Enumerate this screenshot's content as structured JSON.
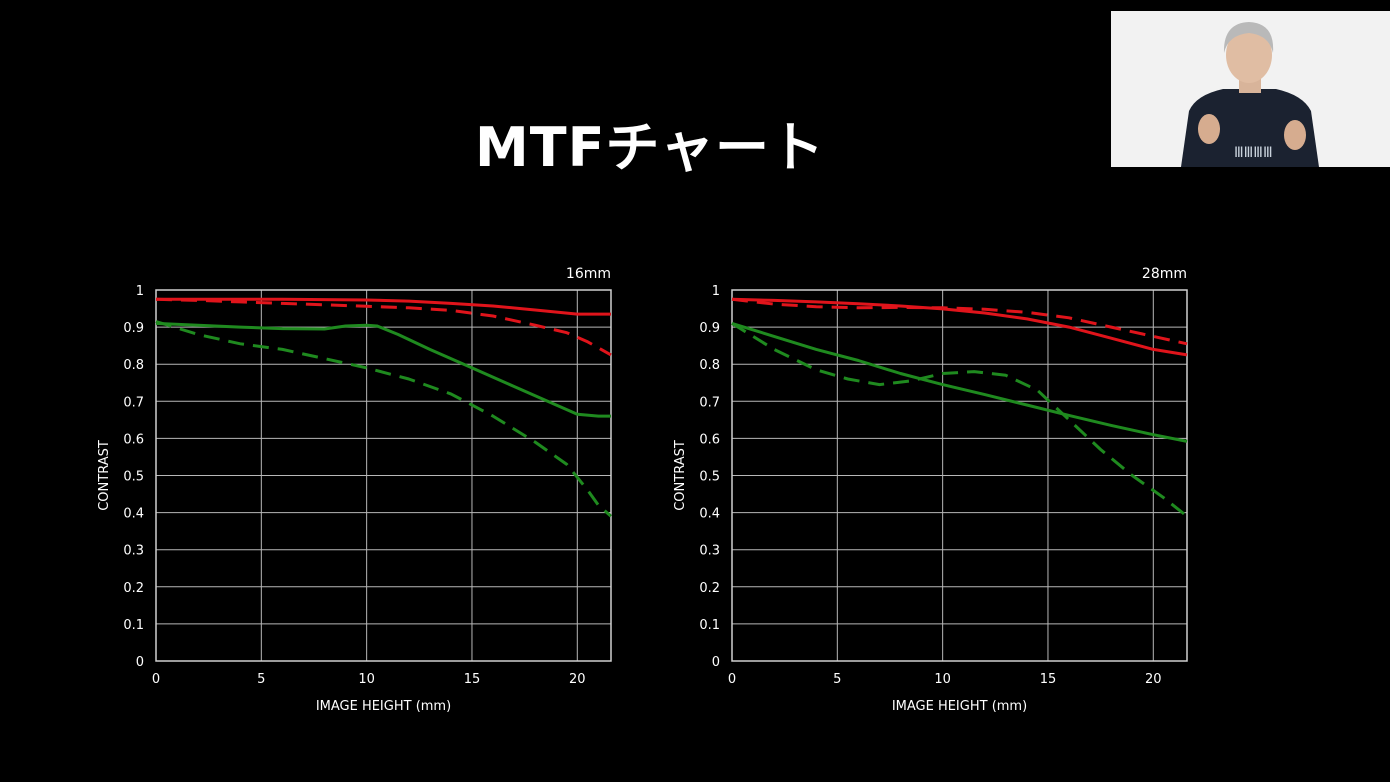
{
  "slide": {
    "title": "MTFチャート"
  },
  "colors": {
    "background": "#000000",
    "sagittal_red": "#e0141b",
    "green": "#1f8a1f",
    "grid": "#b8b8b8"
  },
  "presenter": {
    "icon": "presenter-video-thumbnail",
    "shirt_text": "ⅢⅢⅢⅢ"
  },
  "chart_data": [
    {
      "type": "line",
      "title": "16mm",
      "xlabel": "IMAGE HEIGHT (mm)",
      "ylabel": "CONTRAST",
      "xlim": [
        0,
        21.6
      ],
      "ylim": [
        0,
        1
      ],
      "xticks": [
        0,
        5,
        10,
        15,
        20
      ],
      "yticks": [
        0,
        0.1,
        0.2,
        0.3,
        0.4,
        0.5,
        0.6,
        0.7,
        0.8,
        0.9,
        1
      ],
      "ytick_labels": [
        "0",
        "0.1",
        "0.2",
        "0.3",
        "0.4",
        "0.5",
        "0.6",
        "0.7",
        "0.8",
        "0.9",
        "1"
      ],
      "grid": true,
      "series": [
        {
          "color": "red",
          "style": "solid",
          "x": [
            0,
            2,
            4,
            6,
            8,
            10,
            12,
            14,
            16,
            18,
            20,
            21,
            21.6
          ],
          "y": [
            0.975,
            0.975,
            0.975,
            0.975,
            0.974,
            0.973,
            0.97,
            0.964,
            0.957,
            0.946,
            0.935,
            0.935,
            0.935
          ]
        },
        {
          "color": "red",
          "style": "dashed",
          "x": [
            0,
            2,
            4,
            6,
            8,
            10,
            12,
            14,
            16,
            18,
            19.5,
            20.5,
            21.6
          ],
          "y": [
            0.975,
            0.972,
            0.968,
            0.964,
            0.96,
            0.956,
            0.952,
            0.945,
            0.93,
            0.905,
            0.885,
            0.86,
            0.825
          ]
        },
        {
          "color": "green",
          "style": "solid",
          "x": [
            0,
            2,
            4,
            6,
            8,
            9,
            10,
            10.5,
            11.5,
            13,
            15,
            17,
            19,
            20,
            21,
            21.6
          ],
          "y": [
            0.91,
            0.905,
            0.9,
            0.896,
            0.895,
            0.903,
            0.905,
            0.903,
            0.88,
            0.84,
            0.79,
            0.74,
            0.69,
            0.665,
            0.66,
            0.66
          ]
        },
        {
          "color": "green",
          "style": "dashed",
          "x": [
            0,
            2,
            4,
            6,
            8,
            10,
            12,
            14,
            16,
            18,
            19.5,
            20.5,
            21,
            21.6
          ],
          "y": [
            0.915,
            0.88,
            0.855,
            0.84,
            0.815,
            0.79,
            0.76,
            0.72,
            0.66,
            0.59,
            0.53,
            0.46,
            0.42,
            0.39
          ]
        }
      ]
    },
    {
      "type": "line",
      "title": "28mm",
      "xlabel": "IMAGE HEIGHT (mm)",
      "ylabel": "CONTRAST",
      "xlim": [
        0,
        21.6
      ],
      "ylim": [
        0,
        1
      ],
      "xticks": [
        0,
        5,
        10,
        15,
        20
      ],
      "yticks": [
        0,
        0.1,
        0.2,
        0.3,
        0.4,
        0.5,
        0.6,
        0.7,
        0.8,
        0.9,
        1
      ],
      "ytick_labels": [
        "0",
        "0.1",
        "0.2",
        "0.3",
        "0.4",
        "0.5",
        "0.6",
        "0.7",
        "0.8",
        "0.9",
        "1"
      ],
      "grid": true,
      "series": [
        {
          "color": "red",
          "style": "solid",
          "x": [
            0,
            2,
            4,
            6,
            8,
            10,
            12,
            14,
            16,
            18,
            20,
            21.6
          ],
          "y": [
            0.975,
            0.972,
            0.968,
            0.963,
            0.957,
            0.949,
            0.938,
            0.922,
            0.9,
            0.87,
            0.84,
            0.825
          ]
        },
        {
          "color": "red",
          "style": "dashed",
          "x": [
            0,
            2,
            4,
            6,
            8,
            10,
            12,
            14,
            16,
            18,
            20,
            21.6
          ],
          "y": [
            0.975,
            0.962,
            0.955,
            0.952,
            0.953,
            0.952,
            0.948,
            0.94,
            0.925,
            0.9,
            0.875,
            0.855
          ]
        },
        {
          "color": "green",
          "style": "solid",
          "x": [
            0,
            2,
            4,
            6,
            8,
            10,
            12,
            14,
            16,
            18,
            20,
            21.6
          ],
          "y": [
            0.91,
            0.875,
            0.84,
            0.81,
            0.775,
            0.745,
            0.718,
            0.69,
            0.662,
            0.635,
            0.61,
            0.592
          ]
        },
        {
          "color": "green",
          "style": "dashed",
          "x": [
            0,
            2,
            4,
            5.5,
            7,
            8.5,
            10,
            11.5,
            13,
            14.5,
            16,
            17.5,
            19,
            20.5,
            21.6
          ],
          "y": [
            0.91,
            0.84,
            0.785,
            0.76,
            0.745,
            0.755,
            0.775,
            0.78,
            0.77,
            0.73,
            0.65,
            0.57,
            0.5,
            0.44,
            0.39
          ]
        }
      ]
    }
  ]
}
